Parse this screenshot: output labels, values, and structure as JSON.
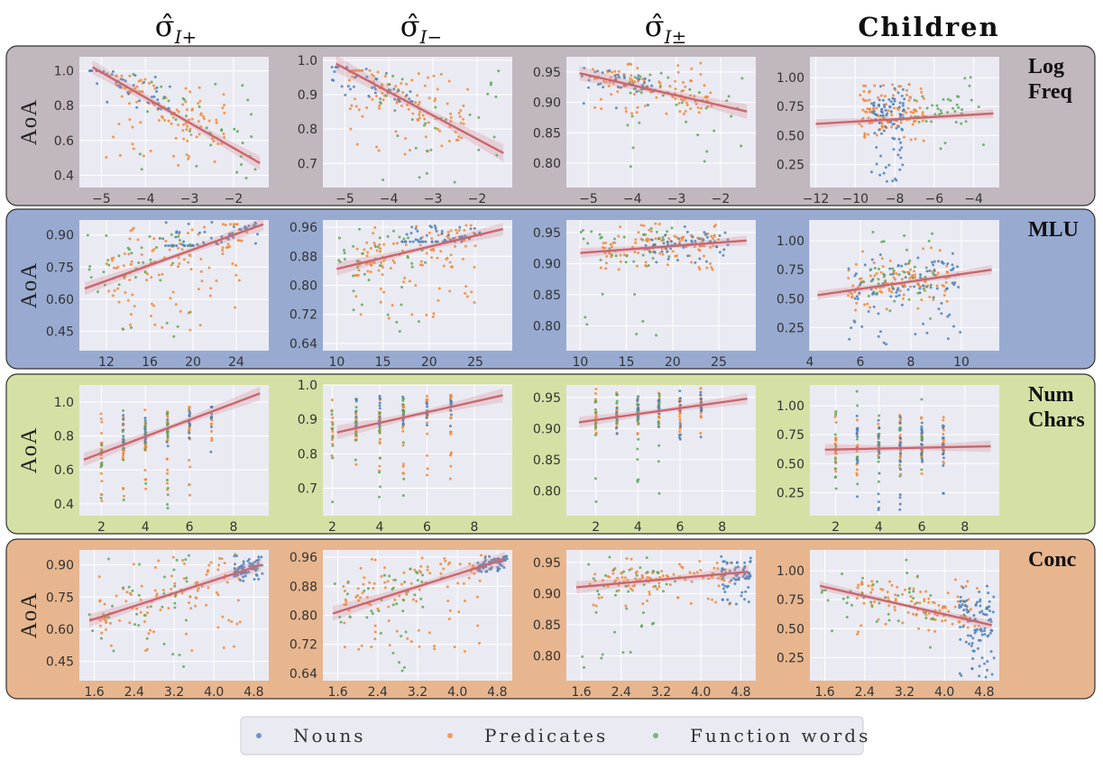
{
  "column_titles": [
    "σ̂",
    "σ̂",
    "σ̂",
    "Children"
  ],
  "column_subscripts": [
    "I+",
    "I−",
    "I±",
    ""
  ],
  "row_labels": [
    [
      "Log",
      "Freq"
    ],
    [
      "MLU"
    ],
    [
      "Num",
      "Chars"
    ],
    [
      "Conc"
    ]
  ],
  "row_colors": [
    "#c1b7be",
    "#98aad0",
    "#d5e0a5",
    "#e7b68f"
  ],
  "ylabel": "AoA",
  "legend": [
    {
      "label": "Nouns",
      "color": "#4c82b8"
    },
    {
      "label": "Predicates",
      "color": "#f08a3a"
    },
    {
      "label": "Function words",
      "color": "#5ea85a"
    }
  ],
  "chart_data": [
    {
      "type": "scatter",
      "row": "Log Freq",
      "column": "σ̂ I+",
      "xlim": [
        -5.5,
        -1.2
      ],
      "ylim": [
        0.33,
        1.08
      ],
      "xticks": [
        -5,
        -4,
        -3,
        -2
      ],
      "yticks": [
        0.4,
        0.6,
        0.8,
        1.0
      ],
      "ytick_labels": [
        "0.4",
        "0.6",
        "0.8",
        "1.0"
      ],
      "xtick_labels": [
        "−5",
        "−4",
        "−3",
        "−2"
      ],
      "fit": {
        "x": [
          -5.2,
          -1.4
        ],
        "y": [
          1.02,
          0.47
        ],
        "band": 0.04
      },
      "nouns": {
        "x": [
          -5,
          -4.5,
          -4
        ],
        "y": [
          0.95,
          0.92,
          0.9
        ],
        "n": 45,
        "xr": [
          -5.3,
          -3.4
        ],
        "yr": [
          0.78,
          1.0
        ]
      },
      "predicates": {
        "n": 110,
        "xr": [
          -4.9,
          -2.2
        ],
        "yr": [
          0.45,
          0.97
        ]
      },
      "function_words": {
        "n": 35,
        "xr": [
          -4.3,
          -1.5
        ],
        "yr": [
          0.35,
          0.98
        ]
      }
    },
    {
      "type": "scatter",
      "row": "Log Freq",
      "column": "σ̂ I−",
      "xlim": [
        -5.5,
        -1.2
      ],
      "ylim": [
        0.63,
        1.01
      ],
      "xticks": [
        -5,
        -4,
        -3,
        -2
      ],
      "yticks": [
        0.7,
        0.8,
        0.9,
        1.0
      ],
      "ytick_labels": [
        "0.7",
        "0.8",
        "0.9",
        "1.0"
      ],
      "xtick_labels": [
        "−5",
        "−4",
        "−3",
        "−2"
      ],
      "fit": {
        "x": [
          -5.2,
          -1.4
        ],
        "y": [
          0.99,
          0.73
        ],
        "band": 0.025
      },
      "nouns": {
        "n": 45,
        "xr": [
          -5.3,
          -3.4
        ],
        "yr": [
          0.88,
          0.98
        ]
      },
      "predicates": {
        "n": 110,
        "xr": [
          -4.9,
          -2.2
        ],
        "yr": [
          0.72,
          0.97
        ]
      },
      "function_words": {
        "n": 35,
        "xr": [
          -4.3,
          -1.5
        ],
        "yr": [
          0.64,
          0.98
        ]
      }
    },
    {
      "type": "scatter",
      "row": "Log Freq",
      "column": "σ̂ I±",
      "xlim": [
        -5.5,
        -1.2
      ],
      "ylim": [
        0.76,
        0.975
      ],
      "xticks": [
        -5,
        -4,
        -3,
        -2
      ],
      "yticks": [
        0.8,
        0.85,
        0.9,
        0.95
      ],
      "ytick_labels": [
        "0.80",
        "0.85",
        "0.90",
        "0.95"
      ],
      "xtick_labels": [
        "−5",
        "−4",
        "−3",
        "−2"
      ],
      "fit": {
        "x": [
          -5.2,
          -1.4
        ],
        "y": [
          0.948,
          0.885
        ],
        "band": 0.012
      },
      "nouns": {
        "n": 45,
        "xr": [
          -5.3,
          -3.4
        ],
        "yr": [
          0.89,
          0.96
        ]
      },
      "predicates": {
        "n": 110,
        "xr": [
          -4.9,
          -2.2
        ],
        "yr": [
          0.88,
          0.965
        ]
      },
      "function_words": {
        "n": 35,
        "xr": [
          -4.3,
          -1.5
        ],
        "yr": [
          0.78,
          0.96
        ]
      }
    },
    {
      "type": "scatter",
      "row": "Log Freq",
      "column": "Children",
      "xlim": [
        -12.3,
        -2.7
      ],
      "ylim": [
        0.05,
        1.18
      ],
      "xticks": [
        -12,
        -10,
        -8,
        -6,
        -4
      ],
      "yticks": [
        0.25,
        0.5,
        0.75,
        1.0
      ],
      "ytick_labels": [
        "0.25",
        "0.50",
        "0.75",
        "1.00"
      ],
      "xtick_labels": [
        "−12",
        "−10",
        "−8",
        "−6",
        "−4"
      ],
      "fit": {
        "x": [
          -12,
          -3
        ],
        "y": [
          0.6,
          0.69
        ],
        "band": 0.04
      },
      "nouns": {
        "n": 90,
        "xr": [
          -9.2,
          -7.5
        ],
        "yr": [
          0.08,
          0.95
        ]
      },
      "predicates": {
        "n": 120,
        "xr": [
          -9.8,
          -6.5
        ],
        "yr": [
          0.45,
          0.95
        ]
      },
      "function_words": {
        "n": 40,
        "xr": [
          -7,
          -3.5
        ],
        "yr": [
          0.3,
          1.1
        ]
      }
    },
    {
      "type": "scatter",
      "row": "MLU",
      "column": "σ̂ I+",
      "xlim": [
        9.5,
        27
      ],
      "ylim": [
        0.36,
        0.97
      ],
      "xticks": [
        12,
        16,
        20,
        24
      ],
      "yticks": [
        0.45,
        0.6,
        0.75,
        0.9
      ],
      "ytick_labels": [
        "0.45",
        "0.60",
        "0.75",
        "0.90"
      ],
      "xtick_labels": [
        "12",
        "16",
        "20",
        "24"
      ],
      "fit": {
        "x": [
          10,
          26.5
        ],
        "y": [
          0.65,
          0.95
        ],
        "band": 0.03
      },
      "nouns": {
        "n": 60,
        "xr": [
          17,
          26
        ],
        "yr": [
          0.85,
          0.96
        ]
      },
      "predicates": {
        "n": 120,
        "xr": [
          12,
          25
        ],
        "yr": [
          0.45,
          0.95
        ]
      },
      "function_words": {
        "n": 40,
        "xr": [
          10,
          20
        ],
        "yr": [
          0.38,
          0.95
        ]
      }
    },
    {
      "type": "scatter",
      "row": "MLU",
      "column": "σ̂ I−",
      "xlim": [
        8.5,
        29
      ],
      "ylim": [
        0.62,
        0.98
      ],
      "xticks": [
        10,
        15,
        20,
        25
      ],
      "yticks": [
        0.64,
        0.72,
        0.8,
        0.88,
        0.96
      ],
      "ytick_labels": [
        "0.64",
        "0.72",
        "0.80",
        "0.88",
        "0.96"
      ],
      "xtick_labels": [
        "10",
        "15",
        "20",
        "25"
      ],
      "fit": {
        "x": [
          10,
          28
        ],
        "y": [
          0.845,
          0.955
        ],
        "band": 0.018
      },
      "nouns": {
        "n": 60,
        "xr": [
          17,
          26
        ],
        "yr": [
          0.92,
          0.965
        ]
      },
      "predicates": {
        "n": 120,
        "xr": [
          12,
          25
        ],
        "yr": [
          0.7,
          0.965
        ]
      },
      "function_words": {
        "n": 40,
        "xr": [
          10,
          20
        ],
        "yr": [
          0.64,
          0.96
        ]
      }
    },
    {
      "type": "scatter",
      "row": "MLU",
      "column": "σ̂ I±",
      "xlim": [
        8.5,
        29
      ],
      "ylim": [
        0.76,
        0.97
      ],
      "xticks": [
        10,
        15,
        20,
        25
      ],
      "yticks": [
        0.8,
        0.85,
        0.9,
        0.95
      ],
      "ytick_labels": [
        "0.80",
        "0.85",
        "0.90",
        "0.95"
      ],
      "xtick_labels": [
        "10",
        "15",
        "20",
        "25"
      ],
      "fit": {
        "x": [
          10,
          28
        ],
        "y": [
          0.917,
          0.937
        ],
        "band": 0.008
      },
      "nouns": {
        "n": 60,
        "xr": [
          17,
          26
        ],
        "yr": [
          0.9,
          0.96
        ]
      },
      "predicates": {
        "n": 120,
        "xr": [
          12,
          25
        ],
        "yr": [
          0.89,
          0.965
        ]
      },
      "function_words": {
        "n": 40,
        "xr": [
          10,
          20
        ],
        "yr": [
          0.78,
          0.96
        ]
      }
    },
    {
      "type": "scatter",
      "row": "MLU",
      "column": "Children",
      "xlim": [
        4,
        11.5
      ],
      "ylim": [
        0.05,
        1.18
      ],
      "xticks": [
        4,
        6,
        8,
        10
      ],
      "yticks": [
        0.25,
        0.5,
        0.75,
        1.0
      ],
      "ytick_labels": [
        "0.25",
        "0.50",
        "0.75",
        "1.00"
      ],
      "xtick_labels": [
        "4",
        "6",
        "8",
        "10"
      ],
      "fit": {
        "x": [
          4.3,
          11.2
        ],
        "y": [
          0.53,
          0.75
        ],
        "band": 0.04
      },
      "nouns": {
        "n": 100,
        "xr": [
          5.5,
          10
        ],
        "yr": [
          0.1,
          0.9
        ]
      },
      "predicates": {
        "n": 110,
        "xr": [
          5.5,
          9.5
        ],
        "yr": [
          0.4,
          0.95
        ]
      },
      "function_words": {
        "n": 40,
        "xr": [
          6,
          9
        ],
        "yr": [
          0.3,
          1.1
        ]
      }
    },
    {
      "type": "scatter",
      "row": "Num Chars",
      "column": "σ̂ I+",
      "xlim": [
        1,
        9.6
      ],
      "ylim": [
        0.33,
        1.1
      ],
      "xticks": [
        2,
        4,
        6,
        8
      ],
      "yticks": [
        0.4,
        0.6,
        0.8,
        1.0
      ],
      "ytick_labels": [
        "0.4",
        "0.6",
        "0.8",
        "1.0"
      ],
      "xtick_labels": [
        "2",
        "4",
        "6",
        "8"
      ],
      "fit": {
        "x": [
          1.2,
          9.2
        ],
        "y": [
          0.66,
          1.05
        ],
        "band": 0.04
      },
      "discrete_x": [
        2,
        3,
        4,
        5,
        6,
        7
      ],
      "nouns": {
        "n": 60,
        "xr": [
          3,
          9
        ],
        "yr": [
          0.7,
          0.97
        ]
      },
      "predicates": {
        "n": 110,
        "xr": [
          2,
          7
        ],
        "yr": [
          0.4,
          0.97
        ]
      },
      "function_words": {
        "n": 40,
        "xr": [
          2,
          5
        ],
        "yr": [
          0.36,
          0.97
        ]
      }
    },
    {
      "type": "scatter",
      "row": "Num Chars",
      "column": "σ̂ I−",
      "xlim": [
        1.6,
        9.6
      ],
      "ylim": [
        0.62,
        1.0
      ],
      "xticks": [
        2,
        4,
        6,
        8
      ],
      "yticks": [
        0.7,
        0.8,
        0.9,
        1.0
      ],
      "ytick_labels": [
        "0.7",
        "0.8",
        "0.9",
        "1.0"
      ],
      "xtick_labels": [
        "2",
        "4",
        "6",
        "8"
      ],
      "fit": {
        "x": [
          2.2,
          9.2
        ],
        "y": [
          0.862,
          0.97
        ],
        "band": 0.02
      },
      "discrete_x": [
        2,
        3,
        4,
        5,
        6,
        7
      ],
      "nouns": {
        "n": 60,
        "xr": [
          3,
          9
        ],
        "yr": [
          0.88,
          0.97
        ]
      },
      "predicates": {
        "n": 110,
        "xr": [
          2,
          7
        ],
        "yr": [
          0.72,
          0.97
        ]
      },
      "function_words": {
        "n": 40,
        "xr": [
          2,
          5
        ],
        "yr": [
          0.64,
          0.96
        ]
      }
    },
    {
      "type": "scatter",
      "row": "Num Chars",
      "column": "σ̂ I±",
      "xlim": [
        0.6,
        9.6
      ],
      "ylim": [
        0.76,
        0.97
      ],
      "xticks": [
        2,
        4,
        6,
        8
      ],
      "yticks": [
        0.8,
        0.85,
        0.9,
        0.95
      ],
      "ytick_labels": [
        "0.80",
        "0.85",
        "0.90",
        "0.95"
      ],
      "xtick_labels": [
        "2",
        "4",
        "6",
        "8"
      ],
      "fit": {
        "x": [
          1.2,
          9.2
        ],
        "y": [
          0.91,
          0.948
        ],
        "band": 0.009
      },
      "discrete_x": [
        2,
        3,
        4,
        5,
        6,
        7
      ],
      "nouns": {
        "n": 60,
        "xr": [
          3,
          9
        ],
        "yr": [
          0.88,
          0.965
        ]
      },
      "predicates": {
        "n": 110,
        "xr": [
          2,
          7
        ],
        "yr": [
          0.89,
          0.965
        ]
      },
      "function_words": {
        "n": 40,
        "xr": [
          2,
          5
        ],
        "yr": [
          0.78,
          0.96
        ]
      }
    },
    {
      "type": "scatter",
      "row": "Num Chars",
      "column": "Children",
      "xlim": [
        0.8,
        9.6
      ],
      "ylim": [
        0.05,
        1.18
      ],
      "xticks": [
        2,
        4,
        6,
        8
      ],
      "yticks": [
        0.25,
        0.5,
        0.75,
        1.0
      ],
      "ytick_labels": [
        "0.25",
        "0.50",
        "0.75",
        "1.00"
      ],
      "xtick_labels": [
        "2",
        "4",
        "6",
        "8"
      ],
      "fit": {
        "x": [
          1.5,
          9.2
        ],
        "y": [
          0.62,
          0.65
        ],
        "band": 0.05
      },
      "discrete_x": [
        2,
        3,
        4,
        5,
        6,
        7
      ],
      "nouns": {
        "n": 90,
        "xr": [
          3,
          9
        ],
        "yr": [
          0.08,
          0.95
        ]
      },
      "predicates": {
        "n": 110,
        "xr": [
          2,
          7
        ],
        "yr": [
          0.4,
          0.95
        ]
      },
      "function_words": {
        "n": 40,
        "xr": [
          2,
          6
        ],
        "yr": [
          0.25,
          1.15
        ]
      }
    },
    {
      "type": "scatter",
      "row": "Conc",
      "column": "σ̂ I+",
      "xlim": [
        1.3,
        5.1
      ],
      "ylim": [
        0.36,
        0.97
      ],
      "xticks": [
        1.6,
        2.4,
        3.2,
        4.0,
        4.8
      ],
      "yticks": [
        0.45,
        0.6,
        0.75,
        0.9
      ],
      "ytick_labels": [
        "0.45",
        "0.60",
        "0.75",
        "0.90"
      ],
      "xtick_labels": [
        "1.6",
        "2.4",
        "3.2",
        "4.0",
        "4.8"
      ],
      "fit": {
        "x": [
          1.5,
          4.95
        ],
        "y": [
          0.64,
          0.9
        ],
        "band": 0.03
      },
      "nouns": {
        "n": 70,
        "xr": [
          4.4,
          5.0
        ],
        "yr": [
          0.82,
          0.95
        ]
      },
      "predicates": {
        "n": 110,
        "xr": [
          1.7,
          4.6
        ],
        "yr": [
          0.5,
          0.95
        ]
      },
      "function_words": {
        "n": 40,
        "xr": [
          1.5,
          3.5
        ],
        "yr": [
          0.4,
          0.95
        ]
      }
    },
    {
      "type": "scatter",
      "row": "Conc",
      "column": "σ̂ I−",
      "xlim": [
        1.3,
        5.1
      ],
      "ylim": [
        0.62,
        0.98
      ],
      "xticks": [
        1.6,
        2.4,
        3.2,
        4.0,
        4.8
      ],
      "yticks": [
        0.64,
        0.72,
        0.8,
        0.88,
        0.96
      ],
      "ytick_labels": [
        "0.64",
        "0.72",
        "0.80",
        "0.88",
        "0.96"
      ],
      "xtick_labels": [
        "1.6",
        "2.4",
        "3.2",
        "4.0",
        "4.8"
      ],
      "fit": {
        "x": [
          1.5,
          4.95
        ],
        "y": [
          0.805,
          0.955
        ],
        "band": 0.02
      },
      "nouns": {
        "n": 70,
        "xr": [
          4.4,
          5.0
        ],
        "yr": [
          0.92,
          0.965
        ]
      },
      "predicates": {
        "n": 110,
        "xr": [
          1.7,
          4.6
        ],
        "yr": [
          0.7,
          0.965
        ]
      },
      "function_words": {
        "n": 40,
        "xr": [
          1.5,
          3.5
        ],
        "yr": [
          0.64,
          0.96
        ]
      }
    },
    {
      "type": "scatter",
      "row": "Conc",
      "column": "σ̂ I±",
      "xlim": [
        1.3,
        5.1
      ],
      "ylim": [
        0.76,
        0.97
      ],
      "xticks": [
        1.6,
        2.4,
        3.2,
        4.0,
        4.8
      ],
      "yticks": [
        0.8,
        0.85,
        0.9,
        0.95
      ],
      "ytick_labels": [
        "0.80",
        "0.85",
        "0.90",
        "0.95"
      ],
      "xtick_labels": [
        "1.6",
        "2.4",
        "3.2",
        "4.0",
        "4.8"
      ],
      "fit": {
        "x": [
          1.5,
          4.95
        ],
        "y": [
          0.91,
          0.935
        ],
        "band": 0.01
      },
      "nouns": {
        "n": 70,
        "xr": [
          4.4,
          5.0
        ],
        "yr": [
          0.88,
          0.96
        ]
      },
      "predicates": {
        "n": 110,
        "xr": [
          1.7,
          4.6
        ],
        "yr": [
          0.88,
          0.965
        ]
      },
      "function_words": {
        "n": 40,
        "xr": [
          1.5,
          3.5
        ],
        "yr": [
          0.78,
          0.96
        ]
      }
    },
    {
      "type": "scatter",
      "row": "Conc",
      "column": "Children",
      "xlim": [
        1.3,
        5.1
      ],
      "ylim": [
        0.05,
        1.18
      ],
      "xticks": [
        1.6,
        2.4,
        3.2,
        4.0,
        4.8
      ],
      "yticks": [
        0.25,
        0.5,
        0.75,
        1.0
      ],
      "ytick_labels": [
        "0.25",
        "0.50",
        "0.75",
        "1.00"
      ],
      "xtick_labels": [
        "1.6",
        "2.4",
        "3.2",
        "4.0",
        "4.8"
      ],
      "fit": {
        "x": [
          1.5,
          4.95
        ],
        "y": [
          0.87,
          0.53
        ],
        "band": 0.04
      },
      "nouns": {
        "n": 100,
        "xr": [
          4.3,
          5.0
        ],
        "yr": [
          0.08,
          0.9
        ]
      },
      "predicates": {
        "n": 110,
        "xr": [
          2.2,
          4.7
        ],
        "yr": [
          0.45,
          0.95
        ]
      },
      "function_words": {
        "n": 40,
        "xr": [
          1.5,
          3.8
        ],
        "yr": [
          0.3,
          1.1
        ]
      }
    }
  ]
}
